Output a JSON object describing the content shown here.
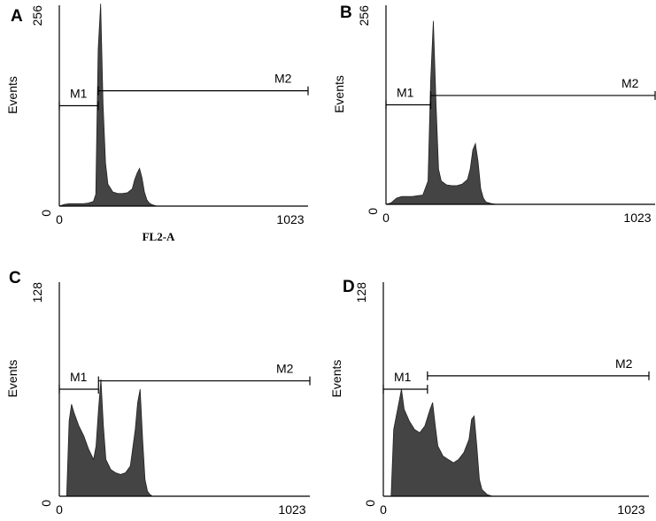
{
  "chart_data": [
    {
      "type": "area",
      "panel_label": "A",
      "ylabel": "Events",
      "xlabel": "FL2-A",
      "x_ticks": [
        "0",
        "1023"
      ],
      "y_ticks": [
        "0",
        "256"
      ],
      "xlim": [
        0,
        1023
      ],
      "ylim": [
        0,
        256
      ],
      "markers": [
        {
          "name": "M1",
          "range": [
            0,
            160
          ],
          "y": 128
        },
        {
          "name": "M2",
          "range": [
            160,
            1023
          ],
          "y": 147
        }
      ],
      "x": [
        0,
        20,
        40,
        60,
        80,
        100,
        120,
        140,
        150,
        160,
        170,
        180,
        190,
        200,
        220,
        240,
        260,
        280,
        300,
        310,
        320,
        330,
        340,
        350,
        360,
        370,
        380,
        390,
        400
      ],
      "values": [
        0,
        2,
        3,
        3,
        3,
        3,
        4,
        6,
        15,
        200,
        258,
        130,
        55,
        28,
        18,
        16,
        16,
        17,
        22,
        34,
        42,
        48,
        36,
        18,
        8,
        4,
        2,
        1,
        0
      ]
    },
    {
      "type": "area",
      "panel_label": "B",
      "ylabel": "Events",
      "xlabel": "",
      "x_ticks": [
        "0",
        "1023"
      ],
      "y_ticks": [
        "0",
        "256"
      ],
      "xlim": [
        0,
        1023
      ],
      "ylim": [
        0,
        256
      ],
      "markers": [
        {
          "name": "M1",
          "range": [
            0,
            170
          ],
          "y": 128
        },
        {
          "name": "M2",
          "range": [
            170,
            1023
          ],
          "y": 140
        }
      ],
      "x": [
        0,
        20,
        40,
        60,
        80,
        100,
        120,
        140,
        160,
        170,
        180,
        190,
        200,
        210,
        230,
        250,
        270,
        290,
        310,
        320,
        330,
        340,
        350,
        360,
        370,
        380,
        400,
        420
      ],
      "values": [
        0,
        2,
        8,
        10,
        10,
        10,
        11,
        12,
        30,
        160,
        236,
        130,
        45,
        30,
        25,
        24,
        24,
        26,
        32,
        45,
        70,
        78,
        55,
        20,
        8,
        3,
        1,
        0
      ]
    },
    {
      "type": "area",
      "panel_label": "C",
      "ylabel": "Events",
      "xlabel": "",
      "x_ticks": [
        "0",
        "1023"
      ],
      "y_ticks": [
        "0",
        "128"
      ],
      "xlim": [
        0,
        1023
      ],
      "ylim": [
        0,
        128
      ],
      "markers": [
        {
          "name": "M1",
          "range": [
            0,
            160
          ],
          "y": 64
        },
        {
          "name": "M2",
          "range": [
            160,
            1023
          ],
          "y": 69
        }
      ],
      "x": [
        0,
        30,
        40,
        50,
        60,
        80,
        100,
        120,
        140,
        150,
        160,
        170,
        180,
        190,
        210,
        230,
        250,
        270,
        290,
        310,
        320,
        330,
        340,
        350,
        360,
        370,
        380,
        400
      ],
      "values": [
        0,
        0,
        45,
        55,
        50,
        42,
        36,
        28,
        22,
        30,
        52,
        70,
        42,
        22,
        16,
        14,
        13,
        14,
        18,
        40,
        56,
        64,
        34,
        10,
        3,
        1,
        0,
        0
      ]
    },
    {
      "type": "area",
      "panel_label": "D",
      "ylabel": "Events",
      "xlabel": "",
      "x_ticks": [
        "0",
        "1023"
      ],
      "y_ticks": [
        "0",
        "128"
      ],
      "xlim": [
        0,
        1023
      ],
      "ylim": [
        0,
        128
      ],
      "markers": [
        {
          "name": "M1",
          "range": [
            0,
            170
          ],
          "y": 64
        },
        {
          "name": "M2",
          "range": [
            170,
            1023
          ],
          "y": 72
        }
      ],
      "x": [
        0,
        30,
        40,
        60,
        70,
        80,
        100,
        120,
        140,
        160,
        180,
        190,
        200,
        210,
        230,
        250,
        270,
        290,
        310,
        330,
        340,
        350,
        360,
        370,
        380,
        400,
        420
      ],
      "values": [
        0,
        0,
        40,
        56,
        64,
        52,
        45,
        40,
        38,
        42,
        52,
        56,
        42,
        30,
        24,
        22,
        20,
        22,
        26,
        34,
        46,
        48,
        30,
        10,
        4,
        1,
        0
      ]
    }
  ]
}
